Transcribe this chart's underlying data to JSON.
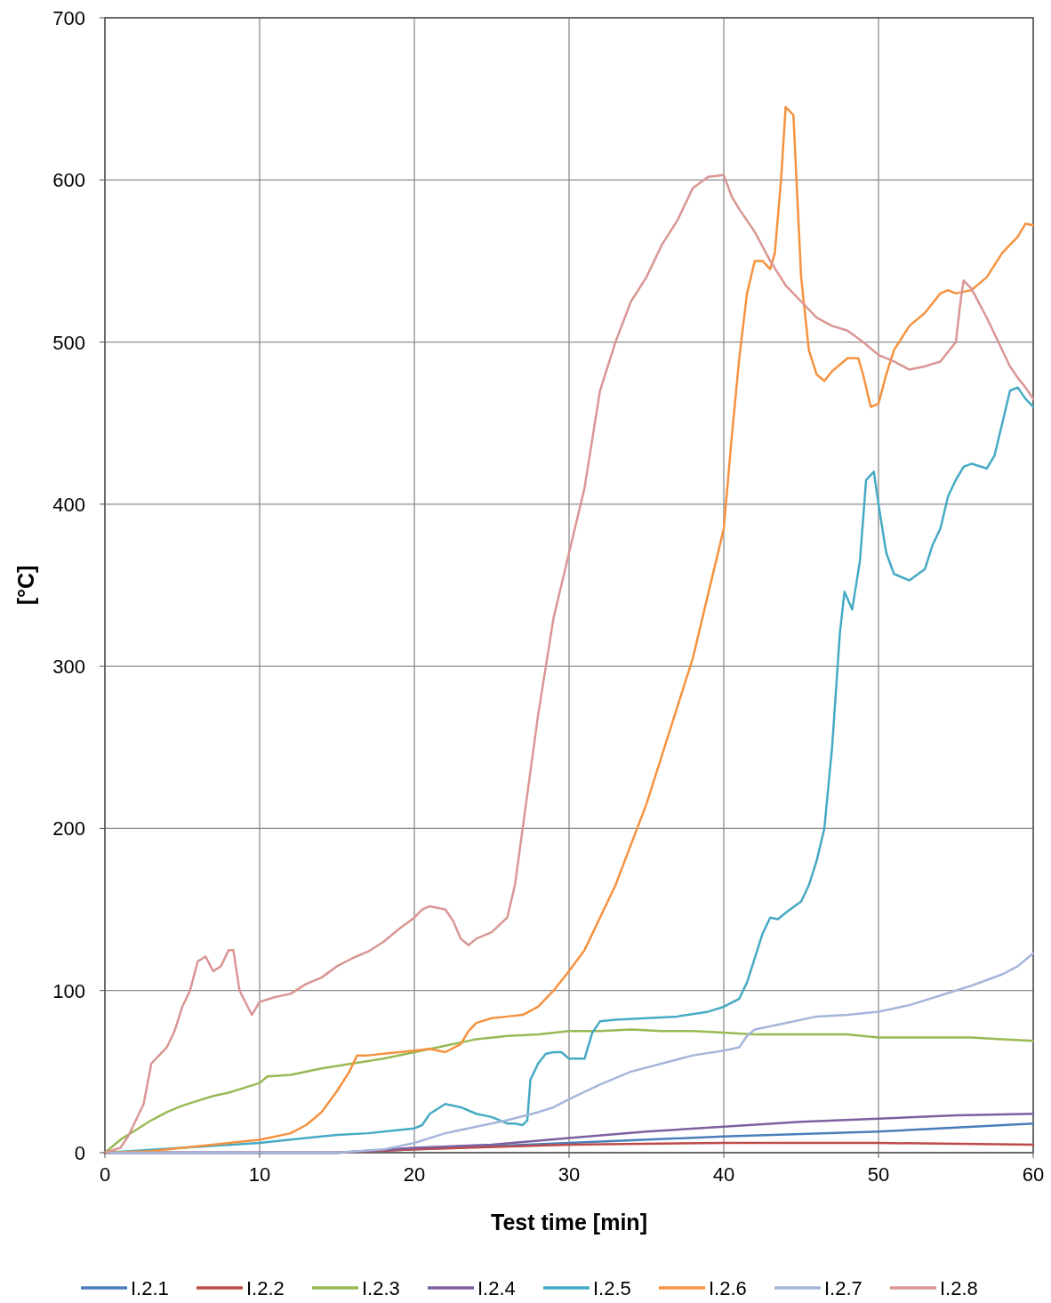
{
  "chart_data": {
    "type": "line",
    "xlabel": "Test time [min]",
    "ylabel": "[°C]",
    "xlim": [
      0,
      60
    ],
    "ylim": [
      0,
      700
    ],
    "xticks": [
      0,
      10,
      20,
      30,
      40,
      50,
      60
    ],
    "yticks": [
      0,
      100,
      200,
      300,
      400,
      500,
      600,
      700
    ],
    "grid": true,
    "legend": "bottom",
    "marker": "none",
    "line_style": "solid",
    "series": [
      {
        "name": "I.2.1",
        "color": "#4a7ebb",
        "x": [
          0,
          15,
          20,
          30,
          40,
          50,
          60
        ],
        "values": [
          0,
          0,
          2,
          6,
          10,
          13,
          18
        ]
      },
      {
        "name": "I.2.2",
        "color": "#be4b48",
        "x": [
          0,
          15,
          20,
          30,
          40,
          50,
          60
        ],
        "values": [
          0,
          0,
          2,
          5,
          6,
          6,
          5
        ]
      },
      {
        "name": "I.2.3",
        "color": "#98b954",
        "x": [
          0,
          1,
          2,
          3,
          4,
          5,
          6,
          7,
          8,
          9,
          10,
          10.5,
          12,
          14,
          16,
          18,
          20,
          22,
          24,
          26,
          28,
          30,
          32,
          34,
          36,
          38,
          40,
          42,
          44,
          46,
          48,
          50,
          52,
          54,
          56,
          58,
          60
        ],
        "values": [
          0,
          8,
          14,
          20,
          25,
          29,
          32,
          35,
          37,
          40,
          43,
          47,
          48,
          52,
          55,
          58,
          62,
          66,
          70,
          72,
          73,
          75,
          75,
          76,
          75,
          75,
          74,
          73,
          73,
          73,
          73,
          71,
          71,
          71,
          71,
          70,
          69
        ]
      },
      {
        "name": "I.2.4",
        "color": "#7d60a0",
        "x": [
          0,
          15,
          20,
          25,
          30,
          35,
          40,
          45,
          50,
          55,
          60
        ],
        "values": [
          0,
          0,
          3,
          5,
          9,
          13,
          16,
          19,
          21,
          23,
          24
        ]
      },
      {
        "name": "I.2.5",
        "color": "#46aac5",
        "x": [
          0,
          10,
          13,
          15,
          17,
          19,
          20,
          20.5,
          21,
          22,
          23,
          24,
          25,
          26,
          26.5,
          27,
          27.3,
          27.5,
          28,
          28.5,
          29,
          29.5,
          30,
          31,
          31.5,
          32,
          33,
          35,
          37,
          39,
          40,
          41,
          41.5,
          42,
          42.5,
          43,
          43.5,
          44,
          45,
          45.5,
          46,
          46.5,
          47,
          47.5,
          47.8,
          48.3,
          48.8,
          49.2,
          49.7,
          50,
          50.5,
          51,
          52,
          53,
          53.5,
          54,
          54.5,
          55,
          55.5,
          56,
          57,
          57.5,
          58,
          58.5,
          59,
          59.5,
          60
        ],
        "values": [
          0,
          6,
          9,
          11,
          12,
          14,
          15,
          17,
          24,
          30,
          28,
          24,
          22,
          18,
          18,
          17,
          20,
          45,
          55,
          61,
          62,
          62,
          58,
          58,
          74,
          81,
          82,
          83,
          84,
          87,
          90,
          95,
          105,
          120,
          135,
          145,
          144,
          148,
          155,
          165,
          180,
          200,
          250,
          320,
          346,
          335,
          365,
          415,
          420,
          400,
          370,
          357,
          353,
          360,
          375,
          385,
          405,
          415,
          423,
          425,
          422,
          430,
          450,
          470,
          472,
          465,
          460
        ]
      },
      {
        "name": "I.2.6",
        "color": "#f59240",
        "x": [
          0,
          3,
          6,
          8,
          10,
          12,
          13,
          14,
          15,
          15.8,
          16.3,
          17,
          18,
          19,
          20,
          21,
          22,
          23,
          23.5,
          24,
          25,
          26,
          27,
          28,
          29,
          30,
          31,
          32,
          33,
          34,
          35,
          36,
          37,
          38,
          39,
          40,
          40.5,
          41,
          41.5,
          42,
          42.5,
          43,
          43.3,
          43.7,
          44,
          44.5,
          45,
          45.5,
          46,
          46.5,
          47,
          48,
          48.7,
          49,
          49.5,
          50,
          50.5,
          51,
          52,
          53,
          54,
          54.5,
          55,
          56,
          57,
          58,
          59,
          59.5,
          60
        ],
        "values": [
          0,
          1,
          4,
          6,
          8,
          12,
          17,
          25,
          38,
          50,
          60,
          60,
          61,
          62,
          63,
          64,
          62,
          67,
          75,
          80,
          83,
          84,
          85,
          90,
          100,
          112,
          125,
          145,
          165,
          190,
          215,
          245,
          275,
          305,
          345,
          385,
          440,
          490,
          530,
          550,
          550,
          545,
          555,
          600,
          645,
          640,
          540,
          495,
          480,
          476,
          482,
          490,
          490,
          480,
          460,
          462,
          480,
          495,
          510,
          518,
          530,
          532,
          530,
          532,
          540,
          555,
          565,
          573,
          572
        ]
      },
      {
        "name": "I.2.7",
        "color": "#a5b6db",
        "x": [
          0,
          15,
          18,
          20,
          22,
          24,
          26,
          28,
          29,
          30,
          32,
          34,
          36,
          38,
          40,
          41,
          41.5,
          42,
          44,
          46,
          48,
          50,
          52,
          54,
          56,
          58,
          59,
          60
        ],
        "values": [
          0,
          0,
          2,
          6,
          12,
          16,
          20,
          25,
          28,
          33,
          42,
          50,
          55,
          60,
          63,
          65,
          72,
          76,
          80,
          84,
          85,
          87,
          91,
          97,
          103,
          110,
          115,
          123
        ]
      },
      {
        "name": "I.2.8",
        "color": "#d99694",
        "x": [
          0,
          1,
          1.5,
          2,
          2.5,
          3,
          3.5,
          4,
          4.5,
          5,
          5.5,
          6,
          6.5,
          7,
          7.5,
          8,
          8.3,
          8.7,
          9.5,
          10,
          11,
          12,
          13,
          14,
          15,
          16,
          17,
          18,
          19,
          20,
          20.5,
          21,
          22,
          22.5,
          23,
          23.5,
          24,
          25,
          26,
          26.5,
          27,
          27.5,
          28,
          28.5,
          29,
          30,
          30.5,
          31,
          31.5,
          32,
          33,
          34,
          35,
          36,
          37,
          38,
          39,
          40,
          40.5,
          41,
          42,
          43,
          44,
          45,
          46,
          47,
          48,
          49,
          50,
          51,
          52,
          53,
          54,
          55,
          55.3,
          55.5,
          56,
          57,
          58,
          58.5,
          59,
          59.5,
          60
        ],
        "values": [
          0,
          3,
          10,
          20,
          30,
          55,
          60,
          65,
          75,
          90,
          100,
          118,
          121,
          112,
          115,
          125,
          125,
          100,
          85,
          93,
          96,
          98,
          104,
          108,
          115,
          120,
          124,
          130,
          138,
          145,
          150,
          152,
          150,
          143,
          132,
          128,
          132,
          136,
          145,
          165,
          200,
          235,
          270,
          300,
          330,
          370,
          390,
          410,
          440,
          470,
          500,
          525,
          540,
          560,
          575,
          595,
          602,
          603,
          590,
          582,
          568,
          550,
          535,
          525,
          515,
          510,
          507,
          500,
          492,
          488,
          483,
          485,
          488,
          500,
          525,
          538,
          533,
          515,
          495,
          485,
          478,
          472,
          465
        ]
      }
    ]
  }
}
